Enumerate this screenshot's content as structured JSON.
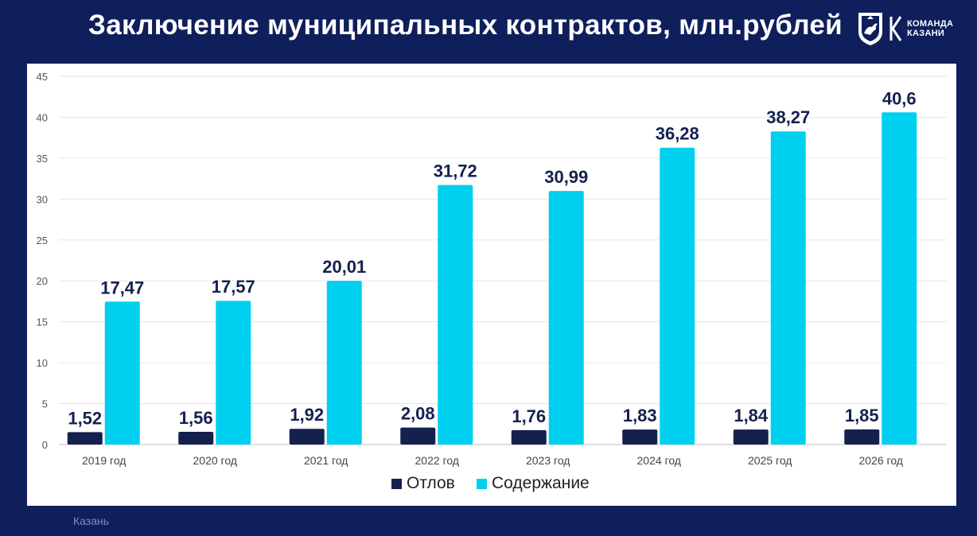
{
  "title": "Заключение муниципальных контрактов, млн.рублей",
  "logo": {
    "brand_line1": "КОМАНДА",
    "brand_line2": "КАЗАНИ",
    "crest_icon": "kazan-coat-of-arms-icon",
    "brand_icon": "team-kazan-k-icon"
  },
  "footer": {
    "location": "Казань"
  },
  "colors": {
    "background": "#0f1f5c",
    "otlov": "#14214f",
    "soderzhanie": "#00d0f0",
    "label": "#14214f"
  },
  "chart_data": {
    "type": "bar",
    "categories": [
      "2019 год",
      "2020 год",
      "2021 год",
      "2022 год",
      "2023 год",
      "2024 год",
      "2025 год",
      "2026 год"
    ],
    "series": [
      {
        "name": "Отлов",
        "values": [
          1.52,
          1.56,
          1.92,
          2.08,
          1.76,
          1.83,
          1.84,
          1.85
        ],
        "labels": [
          "1,52",
          "1,56",
          "1,92",
          "2,08",
          "1,76",
          "1,83",
          "1,84",
          "1,85"
        ]
      },
      {
        "name": "Содержание",
        "values": [
          17.47,
          17.57,
          20.01,
          31.72,
          30.99,
          36.28,
          38.27,
          40.6
        ],
        "labels": [
          "17,47",
          "17,57",
          "20,01",
          "31,72",
          "30,99",
          "36,28",
          "38,27",
          "40,6"
        ]
      }
    ],
    "ylim": [
      0,
      45
    ],
    "yticks": [
      0,
      5,
      10,
      15,
      20,
      25,
      30,
      35,
      40,
      45
    ],
    "grid": true,
    "legend_position": "bottom"
  }
}
